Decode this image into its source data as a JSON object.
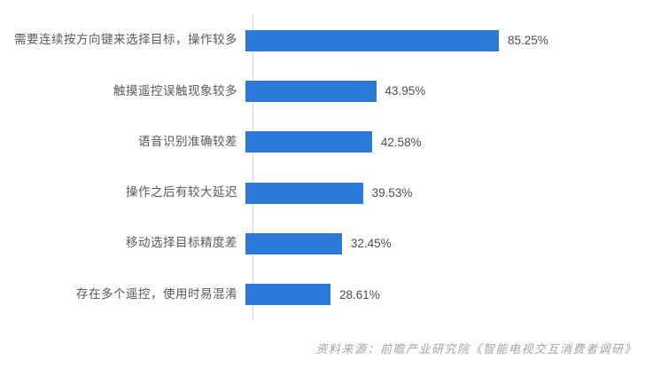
{
  "chart_data": {
    "type": "bar",
    "orientation": "horizontal",
    "title": "",
    "xlabel": "",
    "ylabel": "",
    "grid": false,
    "legend": false,
    "xlim": [
      0,
      100
    ],
    "bar_color": "#2b7ad9",
    "categories": [
      "需要连续按方向键来选择目标，操作较多",
      "触摸遥控误触现象较多",
      "语音识别准确较差",
      "操作之后有较大延迟",
      "移动选择目标精度差",
      "存在多个遥控，使用时易混淆"
    ],
    "values": [
      85.25,
      43.95,
      42.58,
      39.53,
      32.45,
      28.61
    ],
    "value_labels": [
      "85.25%",
      "43.95%",
      "42.58%",
      "39.53%",
      "32.45%",
      "28.61%"
    ]
  },
  "footer": {
    "source_text": "资料来源：前瞻产业研究院《智能电视交互消费者调研》"
  }
}
